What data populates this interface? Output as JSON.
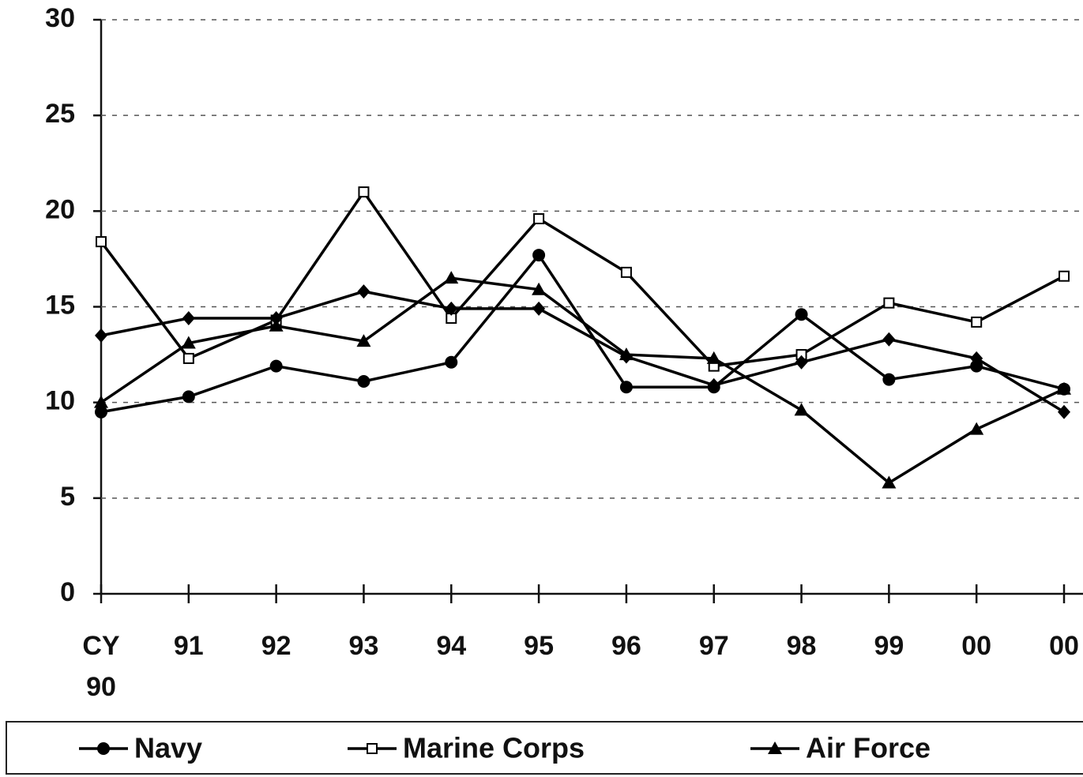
{
  "chart_data": {
    "type": "line",
    "categories": [
      "CY 90",
      "91",
      "92",
      "93",
      "94",
      "95",
      "96",
      "97",
      "98",
      "99",
      "00",
      "00"
    ],
    "series": [
      {
        "name": "Navy",
        "color": "#000000",
        "marker": "circle",
        "values": [
          9.5,
          10.3,
          11.9,
          11.1,
          12.1,
          17.7,
          10.8,
          10.8,
          14.6,
          11.2,
          11.9,
          10.7
        ]
      },
      {
        "name": "Marine Corps",
        "color": "#000000",
        "marker": "square",
        "values": [
          18.4,
          12.3,
          14.3,
          21.0,
          14.4,
          19.6,
          16.8,
          11.9,
          12.5,
          15.2,
          14.2,
          16.6
        ]
      },
      {
        "name": "Air Force",
        "color": "#000000",
        "marker": "triangle",
        "values": [
          10.0,
          13.1,
          14.0,
          13.2,
          16.5,
          15.9,
          12.5,
          12.3,
          9.6,
          5.8,
          8.6,
          10.7
        ]
      },
      {
        "name": null,
        "color": "#000000",
        "marker": "diamond",
        "values": [
          13.5,
          14.4,
          14.4,
          15.8,
          14.9,
          14.9,
          12.4,
          10.9,
          12.1,
          13.3,
          12.3,
          9.5
        ]
      }
    ],
    "ylim": [
      0,
      30
    ],
    "yticks": [
      0,
      5,
      10,
      15,
      20,
      25,
      30
    ],
    "grid": true
  }
}
